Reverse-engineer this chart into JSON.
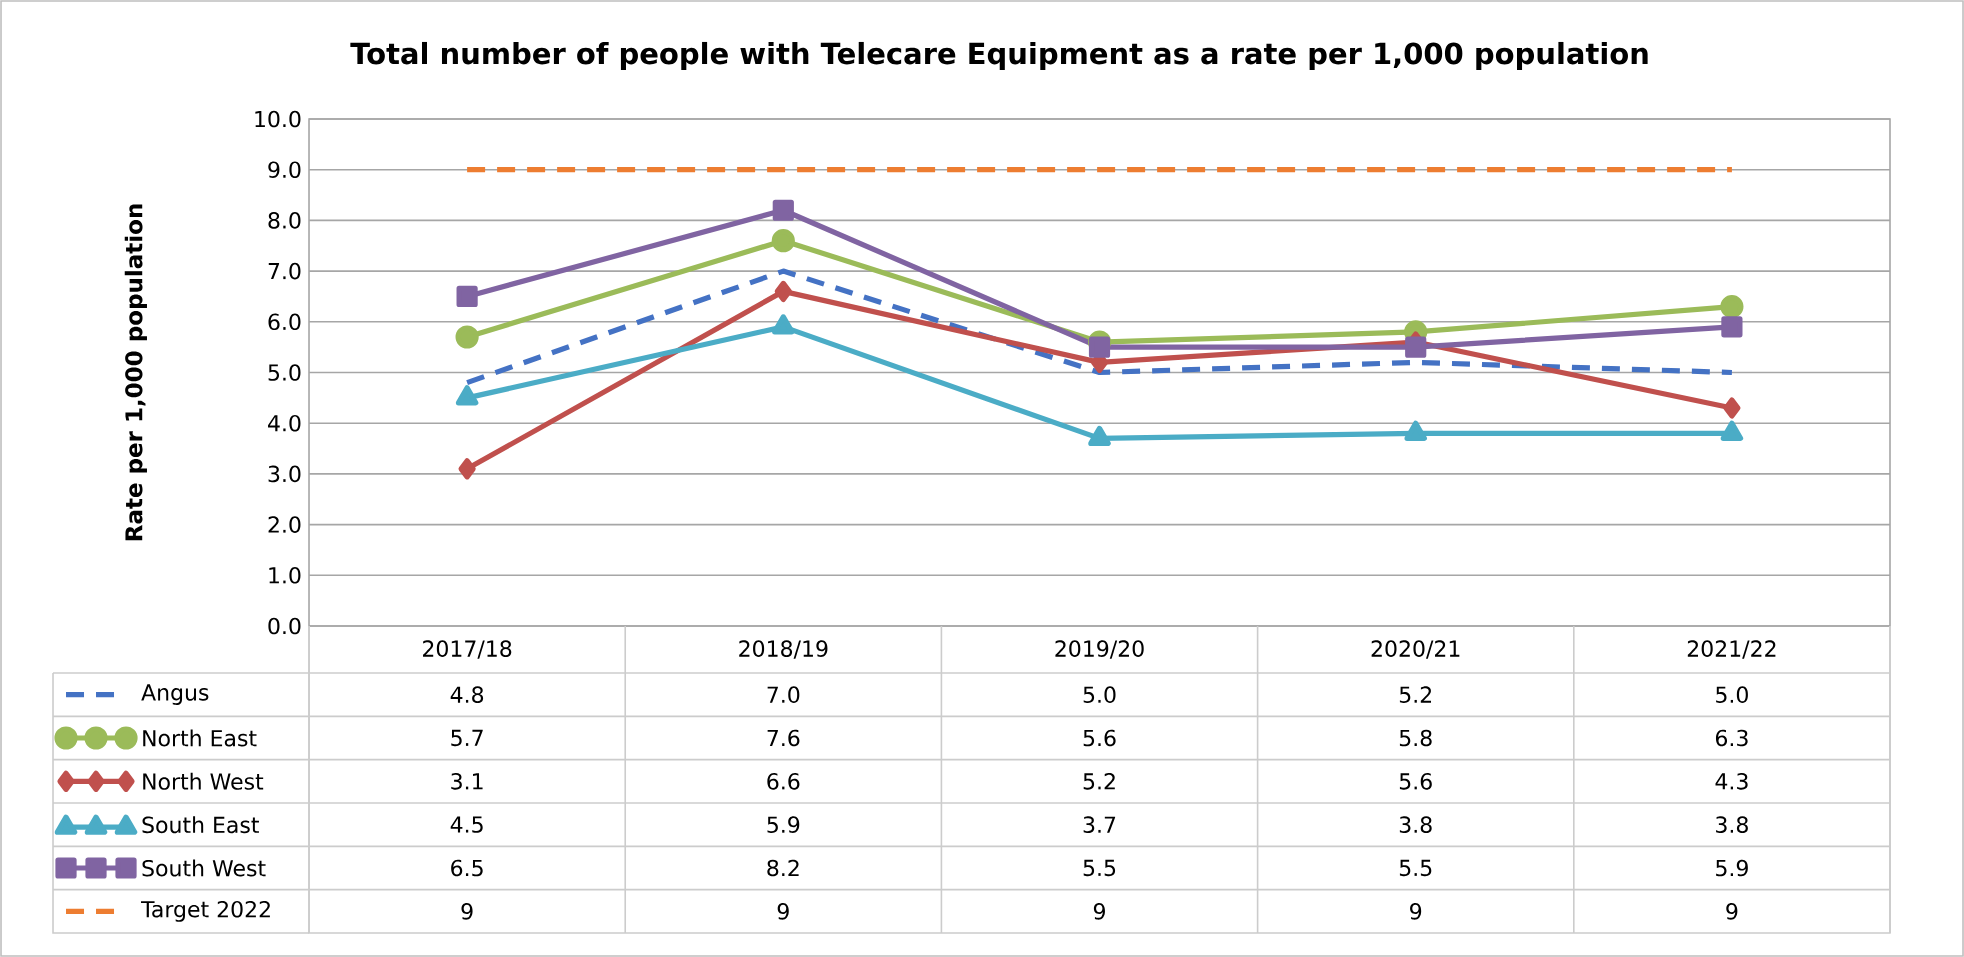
{
  "chart_data": {
    "type": "line",
    "title": "Total number of people with Telecare Equipment as a rate per 1,000 population",
    "ylabel": "Rate per 1,000 population",
    "categories": [
      "2017/18",
      "2018/19",
      "2019/20",
      "2020/21",
      "2021/22"
    ],
    "series": [
      {
        "name": "Angus",
        "color": "#4472c4",
        "line_style": "dashed",
        "marker": "none",
        "values": [
          4.8,
          7.0,
          5.0,
          5.2,
          5.0
        ],
        "value_labels": [
          "4.8",
          "7.0",
          "5.0",
          "5.2",
          "5.0"
        ]
      },
      {
        "name": "North East",
        "color": "#9bbb59",
        "line_style": "solid",
        "marker": "circle",
        "values": [
          5.7,
          7.6,
          5.6,
          5.8,
          6.3
        ],
        "value_labels": [
          "5.7",
          "7.6",
          "5.6",
          "5.8",
          "6.3"
        ]
      },
      {
        "name": "North West",
        "color": "#c0504d",
        "line_style": "solid",
        "marker": "diamond",
        "values": [
          3.1,
          6.6,
          5.2,
          5.6,
          4.3
        ],
        "value_labels": [
          "3.1",
          "6.6",
          "5.2",
          "5.6",
          "4.3"
        ]
      },
      {
        "name": "South East",
        "color": "#4bacc6",
        "line_style": "solid",
        "marker": "triangle",
        "values": [
          4.5,
          5.9,
          3.7,
          3.8,
          3.8
        ],
        "value_labels": [
          "4.5",
          "5.9",
          "3.7",
          "3.8",
          "3.8"
        ]
      },
      {
        "name": "South West",
        "color": "#8064a2",
        "line_style": "solid",
        "marker": "square",
        "values": [
          6.5,
          8.2,
          5.5,
          5.5,
          5.9
        ],
        "value_labels": [
          "6.5",
          "8.2",
          "5.5",
          "5.5",
          "5.9"
        ]
      },
      {
        "name": "Target 2022",
        "color": "#ed7d31",
        "line_style": "dashed",
        "marker": "none",
        "values": [
          9,
          9,
          9,
          9,
          9
        ],
        "value_labels": [
          "9",
          "9",
          "9",
          "9",
          "9"
        ]
      }
    ],
    "ylim": [
      0,
      10
    ],
    "yticks": [
      {
        "value": 0,
        "label": "0.0"
      },
      {
        "value": 1,
        "label": "1.0"
      },
      {
        "value": 2,
        "label": "2.0"
      },
      {
        "value": 3,
        "label": "3.0"
      },
      {
        "value": 4,
        "label": "4.0"
      },
      {
        "value": 5,
        "label": "5.0"
      },
      {
        "value": 6,
        "label": "6.0"
      },
      {
        "value": 7,
        "label": "7.0"
      },
      {
        "value": 8,
        "label": "8.0"
      },
      {
        "value": 9,
        "label": "9.0"
      },
      {
        "value": 10,
        "label": "10.0"
      }
    ],
    "grid": "y",
    "legend": "bottom"
  }
}
